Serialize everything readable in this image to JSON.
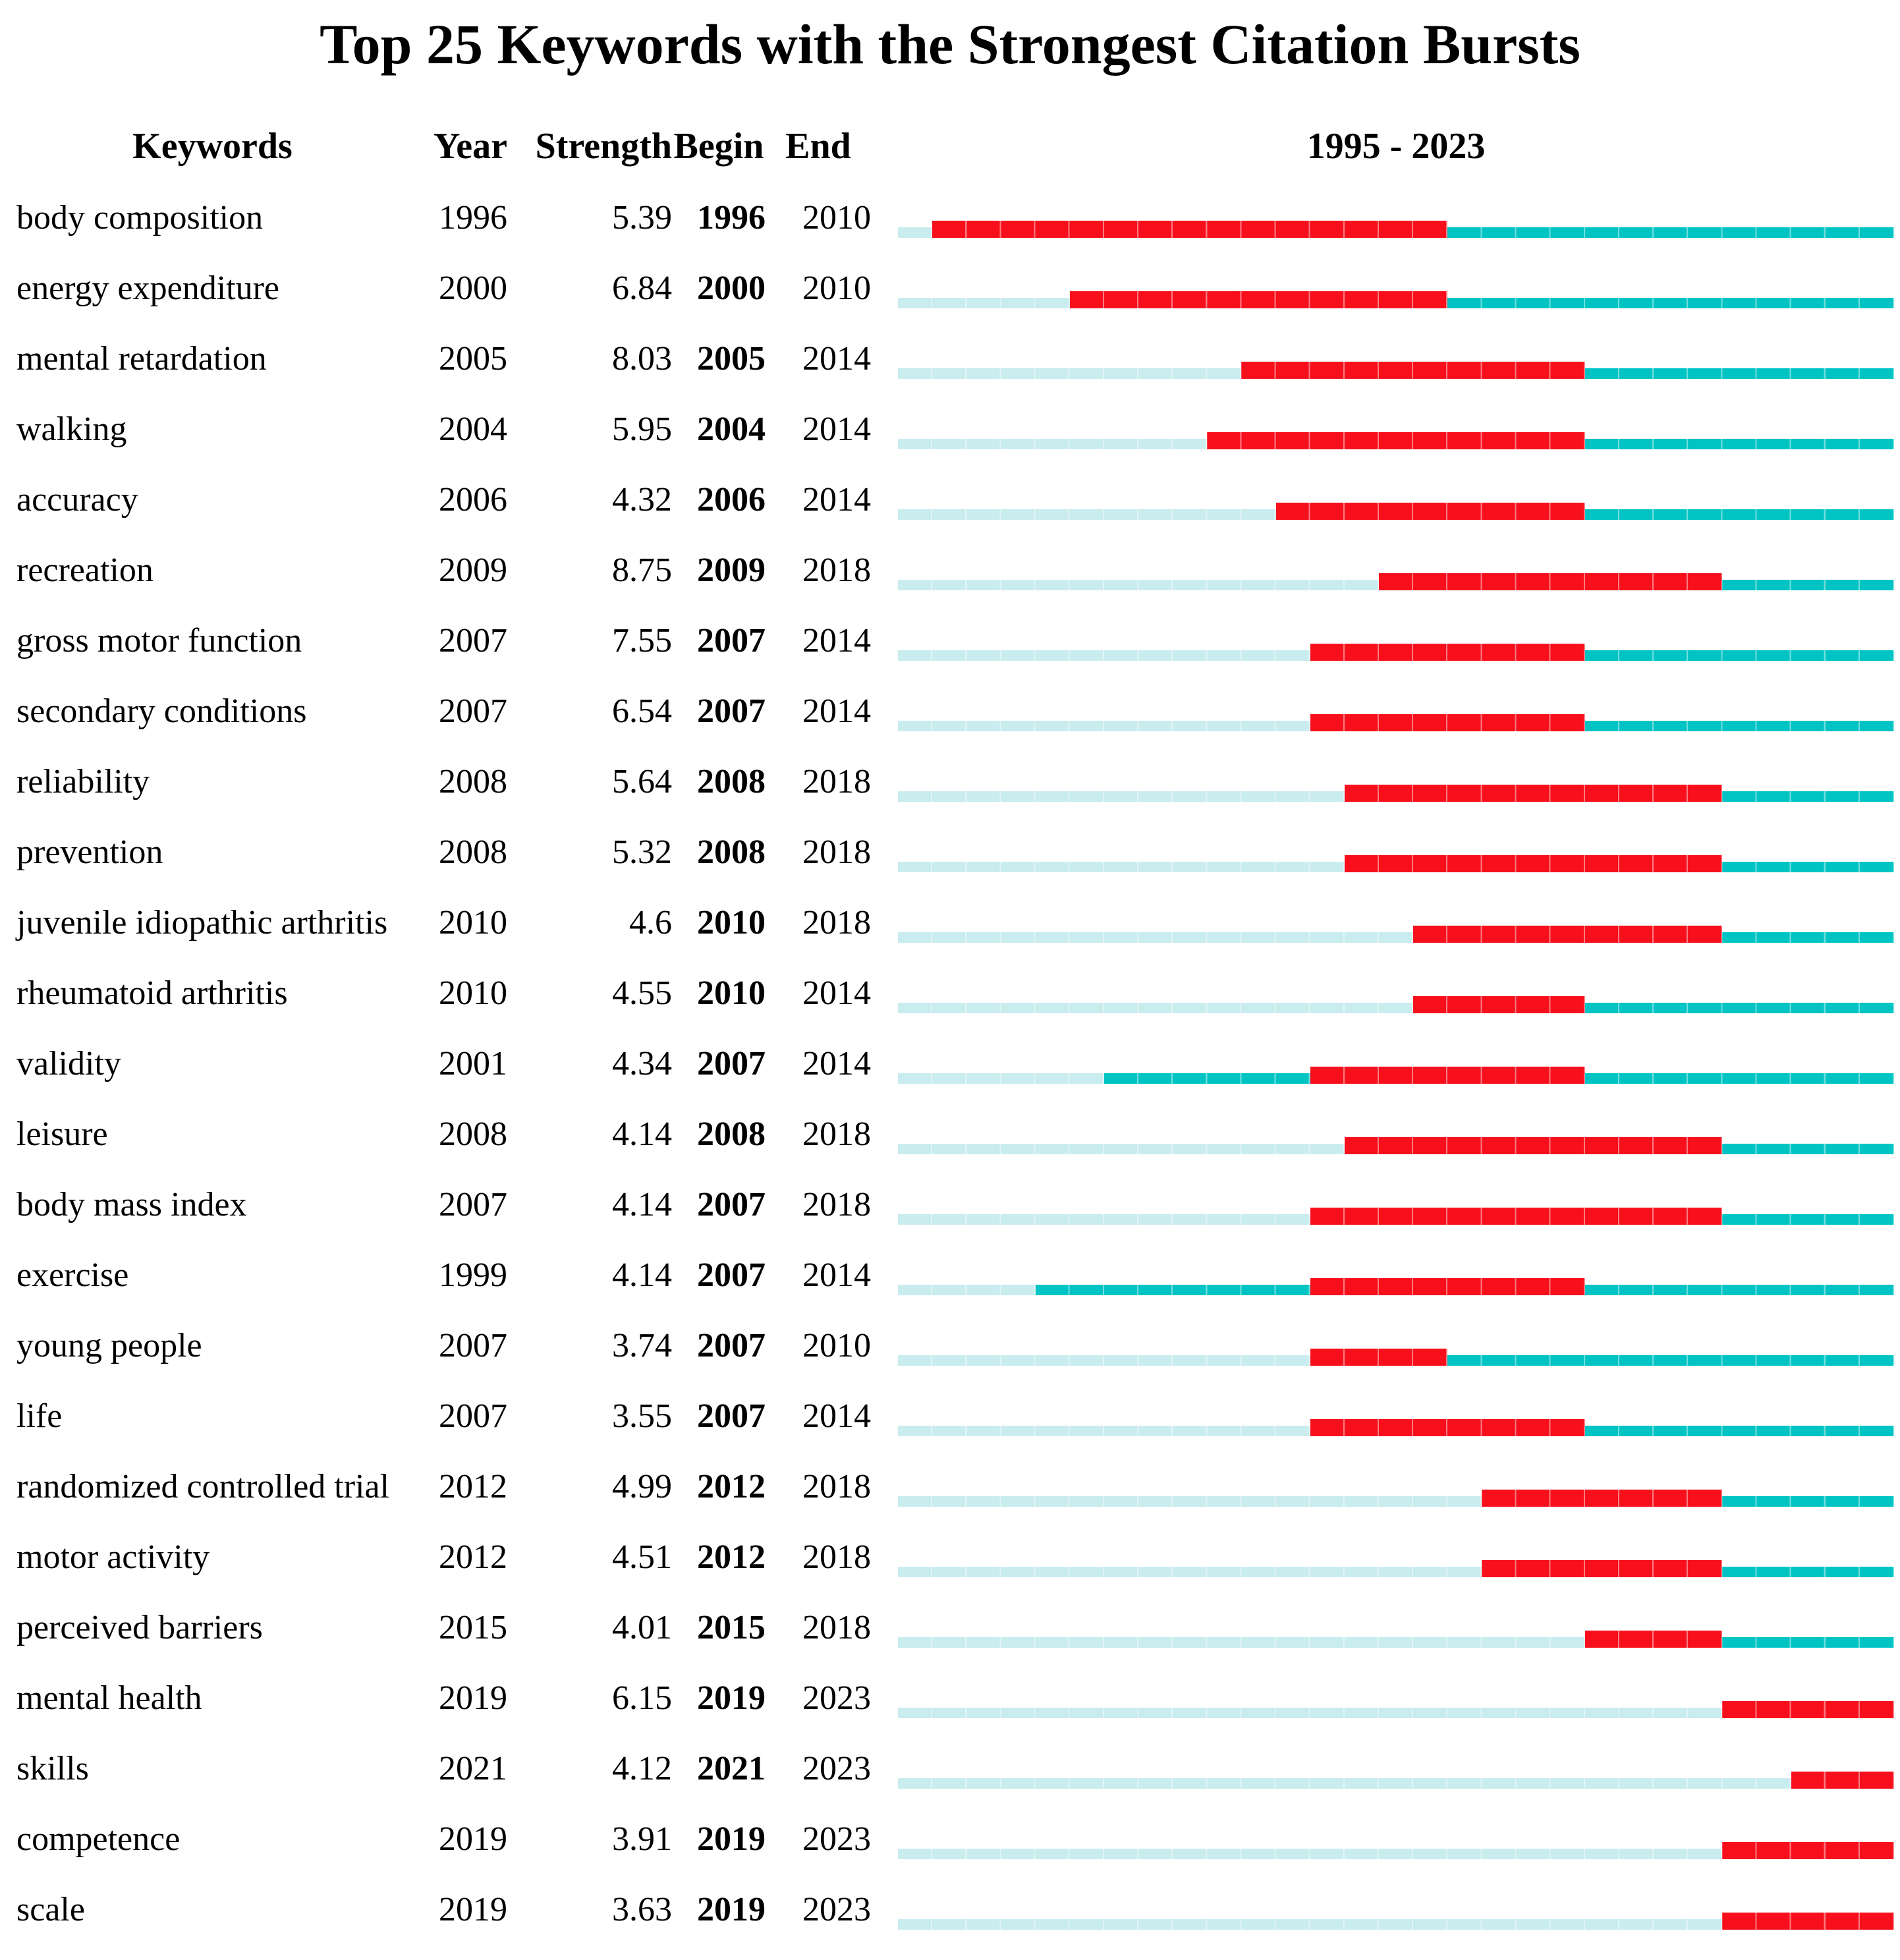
{
  "title": "Top 25 Keywords with the Strongest Citation Bursts",
  "columns": {
    "keyword": "Keywords",
    "year": "Year",
    "strength": "Strength",
    "begin": "Begin",
    "end": "End",
    "timeline": "1995 - 2023"
  },
  "colors": {
    "burst_red": "#F7101C",
    "active_teal": "#00C4C4",
    "pre_appearance_light_blue": "#C9ECEF"
  },
  "chart_data": {
    "type": "bar",
    "subtype": "citation-burst-timeline",
    "title": "Top 25 Keywords with the Strongest Citation Bursts",
    "column_headers": [
      "Keywords",
      "Year",
      "Strength",
      "Begin",
      "End"
    ],
    "timeline_label": "1995 - 2023",
    "x_range": [
      1995,
      2023
    ],
    "legend": {
      "red_segment": "burst period (Begin-End inclusive)",
      "teal_segment": "keyword active (appearance year to burst / after burst)",
      "light_blue_segment": "before keyword appearance"
    },
    "rows": [
      {
        "keyword": "body composition",
        "year": 1996,
        "strength": "5.39",
        "begin": 1996,
        "end": 2010
      },
      {
        "keyword": "energy expenditure",
        "year": 2000,
        "strength": "6.84",
        "begin": 2000,
        "end": 2010
      },
      {
        "keyword": "mental retardation",
        "year": 2005,
        "strength": "8.03",
        "begin": 2005,
        "end": 2014
      },
      {
        "keyword": "walking",
        "year": 2004,
        "strength": "5.95",
        "begin": 2004,
        "end": 2014
      },
      {
        "keyword": "accuracy",
        "year": 2006,
        "strength": "4.32",
        "begin": 2006,
        "end": 2014
      },
      {
        "keyword": "recreation",
        "year": 2009,
        "strength": "8.75",
        "begin": 2009,
        "end": 2018
      },
      {
        "keyword": "gross motor function",
        "year": 2007,
        "strength": "7.55",
        "begin": 2007,
        "end": 2014
      },
      {
        "keyword": "secondary conditions",
        "year": 2007,
        "strength": "6.54",
        "begin": 2007,
        "end": 2014
      },
      {
        "keyword": "reliability",
        "year": 2008,
        "strength": "5.64",
        "begin": 2008,
        "end": 2018
      },
      {
        "keyword": "prevention",
        "year": 2008,
        "strength": "5.32",
        "begin": 2008,
        "end": 2018
      },
      {
        "keyword": "juvenile idiopathic arthritis",
        "year": 2010,
        "strength": "4.6",
        "begin": 2010,
        "end": 2018
      },
      {
        "keyword": "rheumatoid arthritis",
        "year": 2010,
        "strength": "4.55",
        "begin": 2010,
        "end": 2014
      },
      {
        "keyword": "validity",
        "year": 2001,
        "strength": "4.34",
        "begin": 2007,
        "end": 2014
      },
      {
        "keyword": "leisure",
        "year": 2008,
        "strength": "4.14",
        "begin": 2008,
        "end": 2018
      },
      {
        "keyword": "body mass index",
        "year": 2007,
        "strength": "4.14",
        "begin": 2007,
        "end": 2018
      },
      {
        "keyword": "exercise",
        "year": 1999,
        "strength": "4.14",
        "begin": 2007,
        "end": 2014
      },
      {
        "keyword": "young people",
        "year": 2007,
        "strength": "3.74",
        "begin": 2007,
        "end": 2010
      },
      {
        "keyword": "life",
        "year": 2007,
        "strength": "3.55",
        "begin": 2007,
        "end": 2014
      },
      {
        "keyword": "randomized controlled trial",
        "year": 2012,
        "strength": "4.99",
        "begin": 2012,
        "end": 2018
      },
      {
        "keyword": "motor activity",
        "year": 2012,
        "strength": "4.51",
        "begin": 2012,
        "end": 2018
      },
      {
        "keyword": "perceived barriers",
        "year": 2015,
        "strength": "4.01",
        "begin": 2015,
        "end": 2018
      },
      {
        "keyword": "mental health",
        "year": 2019,
        "strength": "6.15",
        "begin": 2019,
        "end": 2023
      },
      {
        "keyword": "skills",
        "year": 2021,
        "strength": "4.12",
        "begin": 2021,
        "end": 2023
      },
      {
        "keyword": "competence",
        "year": 2019,
        "strength": "3.91",
        "begin": 2019,
        "end": 2023
      },
      {
        "keyword": "scale",
        "year": 2019,
        "strength": "3.63",
        "begin": 2019,
        "end": 2023
      }
    ]
  }
}
